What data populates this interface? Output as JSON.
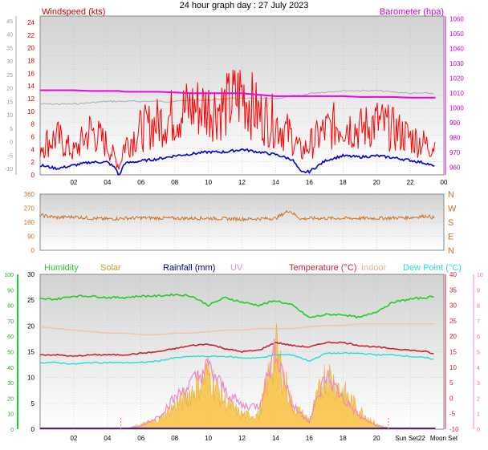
{
  "title": "24 hour graph day : 27 July 2023",
  "colors": {
    "windspeed": "#ff0000",
    "windavg": "#0000cc",
    "barometer": "#ee00ee",
    "baro_gray": "#aaaaaa",
    "direction": "#d07020",
    "humidity": "#22cc22",
    "solar": "#f8c040",
    "rainfall": "#000088",
    "uv": "#ee88cc",
    "temperature": "#cc2233",
    "indoor": "#f4c4a8",
    "dewpoint": "#22dddd"
  },
  "chart_data": [
    {
      "type": "line",
      "panel": "wind",
      "ylabel": "Windspeed (kts)",
      "ylabel_right": "Barometer (hpa)",
      "x_ticks": [
        "02",
        "04",
        "06",
        "08",
        "10",
        "12",
        "14",
        "16",
        "18",
        "20",
        "22",
        "00"
      ],
      "y_ticks": [
        "0",
        "2",
        "4",
        "6",
        "8",
        "10",
        "12",
        "14",
        "16",
        "18",
        "20",
        "22",
        "24"
      ],
      "y_ticks_left_gray": [
        "-10",
        "-5",
        "0",
        "5",
        "10",
        "15",
        "20",
        "25",
        "30",
        "35",
        "40",
        "45"
      ],
      "y_ticks_right": [
        "960",
        "970",
        "980",
        "990",
        "1000",
        "1010",
        "1020",
        "1030",
        "1040",
        "1050",
        "1060"
      ],
      "ylim": [
        0,
        25
      ],
      "ylim_right": [
        955,
        1062
      ],
      "x": [
        0,
        1,
        2,
        3,
        4,
        4.5,
        4.7,
        5,
        6,
        7,
        8,
        9,
        10,
        11,
        12,
        13,
        14,
        15,
        15.5,
        16,
        17,
        18,
        19,
        20,
        21,
        22,
        23,
        23.5
      ],
      "series": [
        {
          "name": "Windspeed",
          "axis": "left",
          "values": [
            4,
            5,
            3,
            6,
            4,
            2,
            1,
            4,
            6,
            7,
            8,
            9,
            9,
            9,
            11,
            8,
            7,
            5,
            3,
            4,
            6,
            7,
            6,
            7,
            6,
            5,
            4,
            4
          ]
        },
        {
          "name": "Avg",
          "axis": "left",
          "values": [
            1.5,
            1,
            1.5,
            2,
            2,
            1,
            -0.2,
            1.8,
            2.2,
            2.5,
            3,
            3.3,
            3.6,
            3.6,
            4,
            3.6,
            3.2,
            2.4,
            0.4,
            0.5,
            2.3,
            3,
            2.8,
            3,
            2.7,
            2.3,
            1.8,
            1.2
          ]
        },
        {
          "name": "Barometer",
          "axis": "right",
          "values": [
            1012,
            1012,
            1012,
            1011.5,
            1011.5,
            1011.5,
            1011.5,
            1011,
            1011,
            1011,
            1010.5,
            1010,
            1010,
            1010,
            1010,
            1009,
            1008,
            1008,
            1008,
            1008,
            1008,
            1008,
            1007.5,
            1007.5,
            1007.5,
            1007,
            1007,
            1007
          ]
        },
        {
          "name": "Gray trend",
          "axis": "left_gray",
          "values": [
            14,
            14,
            14,
            14.5,
            15,
            15,
            15,
            15,
            15,
            15,
            15,
            15.5,
            15.5,
            16,
            16,
            16,
            16,
            17,
            17,
            18,
            18.5,
            19,
            19,
            19,
            18.5,
            18,
            18,
            18
          ]
        }
      ]
    },
    {
      "type": "line",
      "panel": "direction",
      "y_ticks": [
        "0",
        "90",
        "180",
        "270",
        "360"
      ],
      "y_labels_right": [
        "N",
        "W",
        "S",
        "E",
        "N"
      ],
      "ylim": [
        0,
        360
      ],
      "x": [
        0,
        1,
        2,
        3,
        4,
        5,
        6,
        8,
        10,
        12,
        14,
        14.8,
        15.5,
        16,
        18,
        20,
        22,
        23,
        23.5
      ],
      "series": [
        {
          "name": "Direction",
          "values": [
            225,
            210,
            215,
            205,
            200,
            205,
            208,
            205,
            205,
            200,
            205,
            255,
            200,
            205,
            205,
            205,
            210,
            220,
            205
          ]
        }
      ]
    },
    {
      "type": "line",
      "panel": "climate",
      "legend": [
        "Humidity",
        "Solar",
        "Rainfall (mm)",
        "UV",
        "Temperature (°C)",
        "Indoor",
        "Dew Point (°C)"
      ],
      "x_ticks": [
        "02",
        "04",
        "06",
        "08",
        "10",
        "12",
        "14",
        "16",
        "18",
        "20",
        "Sun Set22",
        "Moon Set"
      ],
      "y_ticks_left_green": [
        "0",
        "10",
        "20",
        "30",
        "40",
        "50",
        "60",
        "70",
        "80",
        "90",
        "100"
      ],
      "y_ticks_left": [
        "0",
        "5",
        "10",
        "15",
        "20",
        "25",
        "30"
      ],
      "y_ticks_right_red": [
        "-10",
        "-5",
        "0",
        "5",
        "10",
        "15",
        "20",
        "25",
        "30",
        "35",
        "40"
      ],
      "y_ticks_right_pink": [
        "0",
        "1",
        "2",
        "3",
        "4",
        "5",
        "6",
        "7",
        "8",
        "9",
        "10"
      ],
      "ylim": [
        0,
        30
      ],
      "x": [
        0,
        1,
        2,
        3,
        4,
        5,
        6,
        7,
        8,
        9,
        10,
        11,
        12,
        13,
        14,
        15,
        16,
        17,
        18,
        19,
        20,
        21,
        22,
        23,
        23.5
      ],
      "series": [
        {
          "name": "Humidity",
          "axis": "left_green",
          "values": [
            84,
            84,
            86,
            86,
            85,
            85,
            86,
            86,
            87,
            86,
            80,
            85,
            82,
            80,
            83,
            80,
            72,
            74,
            74,
            72,
            76,
            82,
            84,
            85,
            86
          ]
        },
        {
          "name": "Solar",
          "axis": "left",
          "values": [
            0,
            0,
            0,
            0,
            0,
            0,
            1,
            2,
            5,
            8,
            12,
            6,
            3,
            3,
            17,
            5,
            2,
            12,
            8,
            4,
            1,
            0,
            0,
            0,
            0
          ]
        },
        {
          "name": "Rainfall",
          "axis": "left",
          "values": [
            0,
            0,
            0,
            0,
            0,
            0,
            0,
            0,
            0,
            0,
            0,
            0,
            0,
            0,
            0,
            0,
            0,
            0,
            0,
            0,
            0,
            0,
            0,
            0,
            0
          ]
        },
        {
          "name": "UV",
          "axis": "right_pink",
          "values": [
            0,
            0,
            0,
            0,
            0,
            0,
            0.2,
            0.8,
            2,
            3,
            4,
            2.5,
            1.5,
            1.5,
            5.2,
            1.5,
            0.5,
            3.5,
            2,
            0.8,
            0.2,
            0,
            0,
            0,
            0
          ]
        },
        {
          "name": "Temperature",
          "axis": "right_red",
          "values": [
            14,
            14,
            13.5,
            14,
            14,
            14,
            14.5,
            15,
            16,
            17,
            17.5,
            16,
            15,
            15.5,
            18,
            17,
            16.5,
            18,
            18,
            17,
            16.5,
            16,
            15.5,
            15,
            14
          ]
        },
        {
          "name": "Indoor",
          "axis": "right_red",
          "values": [
            23,
            22.5,
            22,
            21.5,
            21,
            21,
            20.5,
            20.5,
            21,
            21,
            21.5,
            22,
            22,
            22.5,
            22.5,
            22.5,
            23,
            23.5,
            23.5,
            24,
            24,
            24,
            24,
            24,
            24
          ]
        },
        {
          "name": "Dew Point",
          "axis": "right_red",
          "values": [
            11.5,
            11.5,
            11,
            11.5,
            11.5,
            11.5,
            11.5,
            12,
            13,
            13.5,
            13.5,
            13.5,
            13,
            13,
            14,
            14,
            12,
            14.5,
            14.5,
            14.5,
            14,
            14,
            13.5,
            13,
            12.5
          ]
        }
      ]
    }
  ]
}
